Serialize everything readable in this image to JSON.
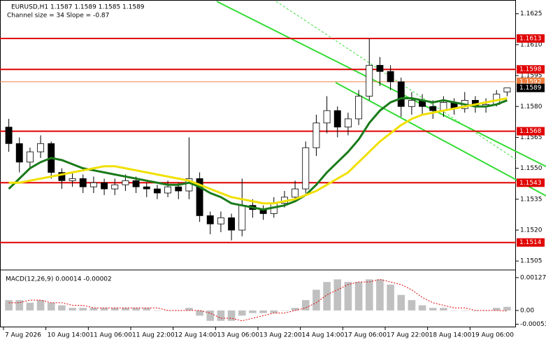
{
  "chart_data": [
    {
      "type": "candlestick",
      "title": "EURUSD,H1  1.1587 1.1589 1.1585 1.1589",
      "subtitle": "Channel size = 34 Slope = -0.87",
      "categories": [
        "7 Aug 2026",
        null,
        null,
        null,
        "10 Aug 14:00",
        null,
        null,
        null,
        "11 Aug 06:00",
        null,
        null,
        null,
        "11 Aug 22:00",
        null,
        null,
        null,
        "12 Aug 14:00",
        null,
        null,
        null,
        "13 Aug 06:00",
        null,
        null,
        null,
        "13 Aug 22:00",
        null,
        null,
        null,
        "14 Aug 14:00",
        null,
        null,
        null,
        "17 Aug 06:00",
        null,
        null,
        null,
        "17 Aug 22:00",
        null,
        null,
        null,
        "18 Aug 14:00",
        null,
        null,
        null,
        "19 Aug 06:00",
        null,
        null,
        null
      ],
      "open": [
        1.157,
        1.1562,
        1.1553,
        1.1558,
        1.1562,
        1.1548,
        1.1544,
        1.1545,
        1.1541,
        1.1543,
        1.154,
        1.1542,
        1.1544,
        1.1541,
        1.154,
        1.1538,
        1.1541,
        1.1539,
        1.1545,
        1.1527,
        1.1523,
        1.1526,
        1.152,
        1.1532,
        1.153,
        1.1528,
        1.1533,
        1.1536,
        1.154,
        1.156,
        1.1572,
        1.1578,
        1.157,
        1.1574,
        1.1585,
        1.16,
        1.1597,
        1.1592,
        1.158,
        1.1583,
        1.158,
        1.1578,
        1.1582,
        1.1579,
        1.1583,
        1.158,
        1.1581,
        1.1587
      ],
      "high": [
        1.1574,
        1.1565,
        1.156,
        1.1566,
        1.1563,
        1.155,
        1.1548,
        1.1547,
        1.1546,
        1.1545,
        1.1545,
        1.1547,
        1.1546,
        1.1543,
        1.1542,
        1.1544,
        1.1543,
        1.1565,
        1.1548,
        1.1529,
        1.1529,
        1.1528,
        1.1545,
        1.1535,
        1.1532,
        1.1536,
        1.1539,
        1.1544,
        1.1563,
        1.1576,
        1.1585,
        1.158,
        1.1577,
        1.1588,
        1.1613,
        1.1604,
        1.16,
        1.1594,
        1.1587,
        1.1586,
        1.1583,
        1.1585,
        1.1584,
        1.1587,
        1.1585,
        1.1584,
        1.1588,
        1.1589
      ],
      "low": [
        1.1558,
        1.1548,
        1.155,
        1.1555,
        1.1545,
        1.154,
        1.1541,
        1.1538,
        1.1538,
        1.1537,
        1.1537,
        1.1539,
        1.1538,
        1.1536,
        1.1535,
        1.1536,
        1.1535,
        1.1535,
        1.1524,
        1.1518,
        1.1519,
        1.1515,
        1.1517,
        1.1526,
        1.1525,
        1.1526,
        1.1531,
        1.1534,
        1.1538,
        1.1556,
        1.1567,
        1.1565,
        1.1566,
        1.1571,
        1.1583,
        1.159,
        1.1588,
        1.1575,
        1.1576,
        1.1576,
        1.1574,
        1.1575,
        1.1576,
        1.1577,
        1.1577,
        1.1577,
        1.158,
        1.1585
      ],
      "close": [
        1.1562,
        1.1553,
        1.1558,
        1.1562,
        1.1548,
        1.1544,
        1.1545,
        1.1541,
        1.1543,
        1.154,
        1.1542,
        1.1544,
        1.1541,
        1.154,
        1.1538,
        1.1541,
        1.1539,
        1.1545,
        1.1527,
        1.1523,
        1.1526,
        1.152,
        1.1532,
        1.153,
        1.1528,
        1.1533,
        1.1536,
        1.154,
        1.156,
        1.1572,
        1.1578,
        1.157,
        1.1574,
        1.1585,
        1.16,
        1.1597,
        1.1592,
        1.158,
        1.1583,
        1.158,
        1.1578,
        1.1582,
        1.1579,
        1.1583,
        1.158,
        1.1581,
        1.1586,
        1.1589
      ],
      "lines": [
        {
          "color": "#1a7a1a",
          "values": [
            1.154,
            1.1545,
            1.155,
            1.1553,
            1.1555,
            1.1554,
            1.1552,
            1.155,
            1.1549,
            1.1548,
            1.1547,
            1.1546,
            1.1545,
            1.1544,
            1.1543,
            1.1542,
            1.1542,
            1.1543,
            1.1541,
            1.1538,
            1.1536,
            1.1533,
            1.1532,
            1.1531,
            1.153,
            1.1531,
            1.1532,
            1.1534,
            1.1537,
            1.1542,
            1.1548,
            1.1553,
            1.1558,
            1.1564,
            1.1572,
            1.1578,
            1.1582,
            1.1584,
            1.1584,
            1.1583,
            1.1582,
            1.1583,
            1.1582,
            1.1581,
            1.158,
            1.158,
            1.1581,
            1.1583
          ]
        },
        {
          "color": "#f0e000",
          "values": [
            1.1543,
            1.1543,
            1.1544,
            1.1545,
            1.1546,
            1.1547,
            1.1548,
            1.1549,
            1.155,
            1.1551,
            1.1551,
            1.155,
            1.1549,
            1.1548,
            1.1547,
            1.1546,
            1.1545,
            1.1544,
            1.1542,
            1.154,
            1.1538,
            1.1536,
            1.1535,
            1.1534,
            1.1533,
            1.1533,
            1.1534,
            1.1535,
            1.1537,
            1.1539,
            1.1542,
            1.1545,
            1.1548,
            1.1553,
            1.1558,
            1.1563,
            1.1567,
            1.1571,
            1.1574,
            1.1576,
            1.1577,
            1.1578,
            1.1579,
            1.158,
            1.1581,
            1.1582,
            1.1583,
            1.1584
          ]
        }
      ],
      "levels": [
        {
          "value": 1.1613,
          "color": "#e00000"
        },
        {
          "value": 1.1598,
          "color": "#e00000"
        },
        {
          "value": 1.1592,
          "color": "#f08040"
        },
        {
          "value": 1.1589,
          "color": "#000000"
        },
        {
          "value": 1.1568,
          "color": "#e00000"
        },
        {
          "value": 1.1543,
          "color": "#e00000"
        },
        {
          "value": 1.1514,
          "color": "#e00000"
        }
      ],
      "ylim": [
        1.1501,
        1.1631
      ],
      "yticks": [
        1.1625,
        {
          "value": 1.161,
          "label": "1.1610"
        },
        1.1595,
        {
          "value": 1.158,
          "label": "1.1580"
        },
        1.1565,
        {
          "value": 1.155,
          "label": "1.1550"
        },
        1.1535,
        {
          "value": 1.152,
          "label": "1.1520"
        },
        1.1505
      ]
    },
    {
      "type": "macd",
      "title": "MACD(12,26,9) 0.00014 -0.00002",
      "color": "#c0c0c0",
      "values": [
        0.0004,
        0.0004,
        0.0003,
        0.0004,
        0.0003,
        0.0002,
        0.0001,
        0.0001,
        0.0001,
        0.0001,
        0.0001,
        0.0001,
        0.0001,
        0.0001,
        0,
        0,
        0,
        0.0001,
        -0.0002,
        -0.0004,
        -0.0004,
        -0.0004,
        -0.0002,
        -0.0001,
        -0.0001,
        -0.0001,
        0,
        0.0001,
        0.0004,
        0.0008,
        0.0011,
        0.0012,
        0.0011,
        0.0011,
        0.0012,
        0.0012,
        0.001,
        0.0006,
        0.0004,
        0.0002,
        0.0001,
        0.0001,
        0,
        0,
        0,
        0,
        0.0001,
        0.00014
      ],
      "signal": {
        "color": "#e00000",
        "values": [
          0.0003,
          0.0003,
          0.0004,
          0.0004,
          0.0003,
          0.0003,
          0.0002,
          0.0002,
          0.0001,
          0.0001,
          0.0001,
          0.0001,
          0.0001,
          0.0001,
          0.0001,
          0,
          0,
          0,
          0,
          -0.0001,
          -0.0003,
          -0.0003,
          -0.0004,
          -0.0003,
          -0.0002,
          -0.0001,
          -0.0001,
          0,
          0.0001,
          0.0003,
          0.0006,
          0.0008,
          0.001,
          0.0011,
          0.0011,
          0.0012,
          0.0011,
          0.001,
          0.0008,
          0.0005,
          0.0003,
          0.0002,
          0.0001,
          0.0001,
          0,
          0,
          0,
          -2e-05
        ]
      },
      "ylim": [
        -0.00065,
        0.00151
      ],
      "yticks": [
        0.00127,
        {
          "value": 0,
          "label": "0.00"
        },
        -0.00053
      ]
    }
  ]
}
